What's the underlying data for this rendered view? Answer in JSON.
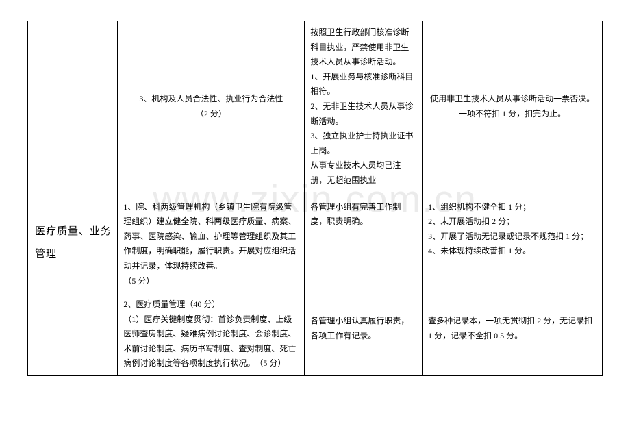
{
  "watermark": "www.zixin.com.cn",
  "table": {
    "rows": [
      {
        "category": "",
        "item": "3、机构及人员合法性、执业行为合法性\n（2 分）",
        "criteria": "按照卫生行政部门核准诊断科目执业，严禁使用非卫生技术人员从事诊断活动。\n1、开展业务与核准诊断科目相符。\n2、无非卫生技术人员从事诊断活动。\n3、独立执业护士持执业证书上岗。\n从事专业技术人员均已注册，无超范围执业",
        "scoring": "使用非卫生技术人员从事诊断活动一票否决。一项不符扣 1 分，扣完为止。",
        "item_align": "center",
        "scoring_align": "center",
        "category_border": "no-top"
      },
      {
        "category": "医疗质量、业务管理",
        "item": "1、院、科两级管理机构（乡镇卫生院有院级管理组织）建立健全院、科两级医疗质量、病案、药事、医院感染、输血、护理等管理组织及其工作制度，明确职能，履行职责。开展对应组织活动并记录，体现持续改善。\n（5 分）",
        "criteria": "各管理小组有完善工作制度，职责明确。",
        "scoring": "1、组织机构不健全扣 1 分；\n2、未开展活动扣 2 分；\n3、开展了活动无记录或记录不规范扣 1 分；\n4、未体现持续改善扣 1 分。",
        "criteria_valign": "top",
        "scoring_valign": "top",
        "category_border": "no-bottom"
      },
      {
        "category": "",
        "item": "2、医疗质量管理（40 分）\n（1）医疗关键制度贯彻：首诊负责制度、上级医师查房制度、疑难病例讨论制度、会诊制度、术前讨论制度、病历书写制度、查对制度、死亡病例讨论制度等各项制度执行状况。　（5 分）",
        "criteria": "各管理小组认真履行职责，各项工作有记录。",
        "scoring": "查多种记录本，一项无贯彻扣 2 分，无记录扣 1 分，记录不全扣 0.5 分。",
        "category_border": "no-top",
        "criteria_valign": "top",
        "scoring_valign": "top"
      }
    ]
  }
}
